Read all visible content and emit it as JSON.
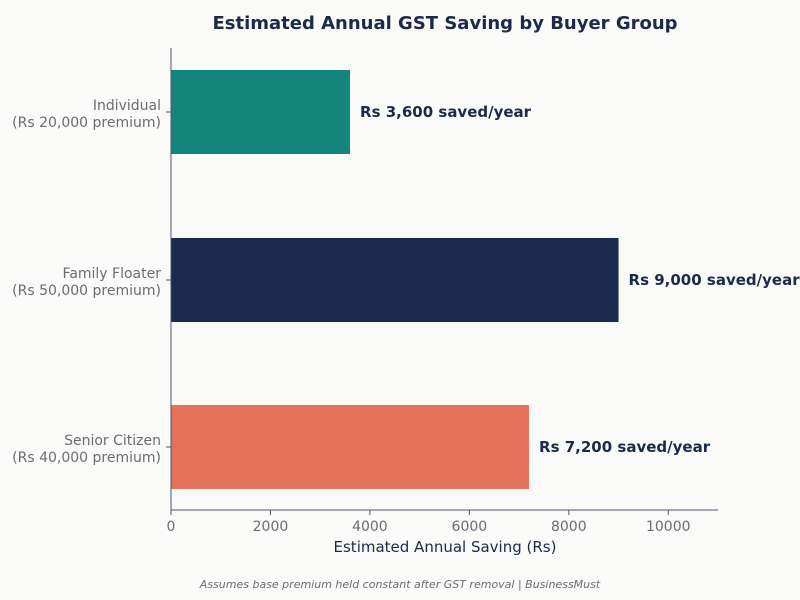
{
  "chart_data": {
    "type": "bar",
    "orientation": "horizontal",
    "title": "Estimated Annual GST Saving by Buyer Group",
    "xlabel": "Estimated Annual Saving (Rs)",
    "ylabel": "",
    "xlim": [
      0,
      11000
    ],
    "xticks": [
      0,
      2000,
      4000,
      6000,
      8000,
      10000
    ],
    "grid": false,
    "categories": [
      {
        "line1": "Individual",
        "line2": "(Rs 20,000 premium)"
      },
      {
        "line1": "Family Floater",
        "line2": "(Rs 50,000 premium)"
      },
      {
        "line1": "Senior Citizen",
        "line2": "(Rs 40,000 premium)"
      }
    ],
    "values": [
      3600,
      9000,
      7200
    ],
    "data_labels": [
      "Rs 3,600 saved/year",
      "Rs 9,000 saved/year",
      "Rs 7,200 saved/year"
    ],
    "colors": [
      "#13857a",
      "#1b2a4f",
      "#e4735a"
    ]
  },
  "footnote": "Assumes base premium held constant after GST removal | BusinessMust"
}
